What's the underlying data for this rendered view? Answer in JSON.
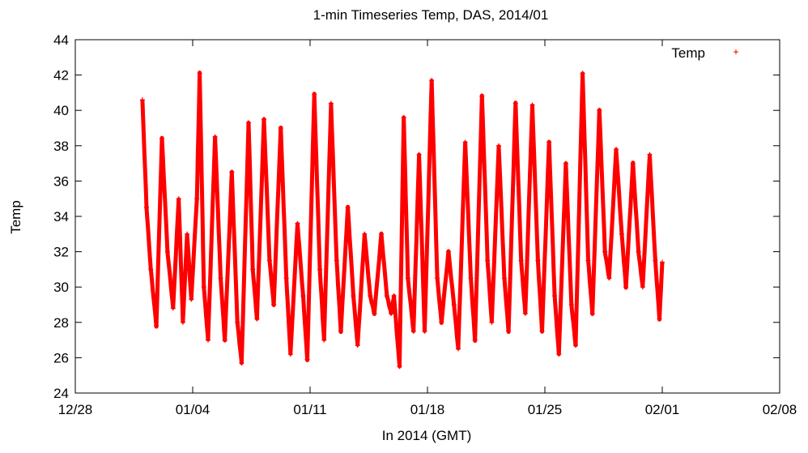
{
  "chart_data": {
    "type": "scatter",
    "title": "1-min Timeseries Temp, DAS, 2014/01",
    "xlabel": "In 2014 (GMT)",
    "ylabel": "Temp",
    "xlim": [
      "2013-12-28",
      "2014-02-08"
    ],
    "ylim": [
      24,
      44
    ],
    "x_ticks": [
      "12/28",
      "01/04",
      "01/11",
      "01/18",
      "01/25",
      "02/01",
      "02/08"
    ],
    "y_ticks": [
      24,
      26,
      28,
      30,
      32,
      34,
      36,
      38,
      40,
      42,
      44
    ],
    "grid": false,
    "legend": "top-right",
    "marker": "+",
    "series": [
      {
        "name": "Temp",
        "color": "#ff0000",
        "points": [
          [
            "2014-01-01 00:00",
            40.6
          ],
          [
            "2014-01-01 06:00",
            34.5
          ],
          [
            "2014-01-01 12:00",
            31.0
          ],
          [
            "2014-01-01 20:00",
            27.8
          ],
          [
            "2014-01-02 04:00",
            38.4
          ],
          [
            "2014-01-02 12:00",
            32.0
          ],
          [
            "2014-01-02 20:00",
            28.8
          ],
          [
            "2014-01-03 04:00",
            35.0
          ],
          [
            "2014-01-03 10:00",
            28.0
          ],
          [
            "2014-01-03 16:00",
            33.0
          ],
          [
            "2014-01-03 22:00",
            29.3
          ],
          [
            "2014-01-04 06:00",
            35.0
          ],
          [
            "2014-01-04 10:00",
            42.1
          ],
          [
            "2014-01-04 16:00",
            30.0
          ],
          [
            "2014-01-04 22:00",
            27.0
          ],
          [
            "2014-01-05 08:00",
            38.5
          ],
          [
            "2014-01-05 16:00",
            30.5
          ],
          [
            "2014-01-05 22:00",
            27.0
          ],
          [
            "2014-01-06 08:00",
            36.5
          ],
          [
            "2014-01-06 16:00",
            28.0
          ],
          [
            "2014-01-06 22:00",
            25.7
          ],
          [
            "2014-01-07 08:00",
            39.3
          ],
          [
            "2014-01-07 14:00",
            31.0
          ],
          [
            "2014-01-07 20:00",
            28.2
          ],
          [
            "2014-01-08 06:00",
            39.5
          ],
          [
            "2014-01-08 14:00",
            31.5
          ],
          [
            "2014-01-08 20:00",
            29.0
          ],
          [
            "2014-01-09 06:00",
            39.0
          ],
          [
            "2014-01-09 14:00",
            30.5
          ],
          [
            "2014-01-09 20:00",
            26.2
          ],
          [
            "2014-01-10 06:00",
            33.6
          ],
          [
            "2014-01-10 14:00",
            29.5
          ],
          [
            "2014-01-10 20:00",
            25.9
          ],
          [
            "2014-01-11 06:00",
            40.9
          ],
          [
            "2014-01-11 14:00",
            31.0
          ],
          [
            "2014-01-11 20:00",
            27.0
          ],
          [
            "2014-01-12 06:00",
            40.4
          ],
          [
            "2014-01-12 14:00",
            31.5
          ],
          [
            "2014-01-12 20:00",
            27.5
          ],
          [
            "2014-01-13 06:00",
            34.5
          ],
          [
            "2014-01-13 14:00",
            29.5
          ],
          [
            "2014-01-13 20:00",
            26.7
          ],
          [
            "2014-01-14 06:00",
            33.0
          ],
          [
            "2014-01-14 14:00",
            29.5
          ],
          [
            "2014-01-14 20:00",
            28.5
          ],
          [
            "2014-01-15 06:00",
            33.0
          ],
          [
            "2014-01-15 14:00",
            29.5
          ],
          [
            "2014-01-15 20:00",
            28.5
          ],
          [
            "2014-01-16 00:00",
            29.5
          ],
          [
            "2014-01-16 08:00",
            25.5
          ],
          [
            "2014-01-16 14:00",
            39.6
          ],
          [
            "2014-01-16 20:00",
            30.5
          ],
          [
            "2014-01-17 04:00",
            27.5
          ],
          [
            "2014-01-17 12:00",
            37.5
          ],
          [
            "2014-01-17 20:00",
            27.5
          ],
          [
            "2014-01-18 06:00",
            41.7
          ],
          [
            "2014-01-18 14:00",
            30.5
          ],
          [
            "2014-01-18 20:00",
            28.0
          ],
          [
            "2014-01-19 06:00",
            32.0
          ],
          [
            "2014-01-19 14:00",
            29.0
          ],
          [
            "2014-01-19 20:00",
            26.5
          ],
          [
            "2014-01-20 06:00",
            38.2
          ],
          [
            "2014-01-20 14:00",
            30.5
          ],
          [
            "2014-01-20 20:00",
            27.0
          ],
          [
            "2014-01-21 06:00",
            40.8
          ],
          [
            "2014-01-21 14:00",
            31.5
          ],
          [
            "2014-01-21 20:00",
            28.0
          ],
          [
            "2014-01-22 06:00",
            38.0
          ],
          [
            "2014-01-22 14:00",
            30.5
          ],
          [
            "2014-01-22 20:00",
            27.5
          ],
          [
            "2014-01-23 06:00",
            40.4
          ],
          [
            "2014-01-23 14:00",
            31.5
          ],
          [
            "2014-01-23 20:00",
            28.5
          ],
          [
            "2014-01-24 06:00",
            40.3
          ],
          [
            "2014-01-24 14:00",
            31.5
          ],
          [
            "2014-01-24 20:00",
            27.5
          ],
          [
            "2014-01-25 06:00",
            38.2
          ],
          [
            "2014-01-25 14:00",
            29.5
          ],
          [
            "2014-01-25 20:00",
            26.2
          ],
          [
            "2014-01-26 06:00",
            37.0
          ],
          [
            "2014-01-26 14:00",
            29.0
          ],
          [
            "2014-01-26 20:00",
            26.7
          ],
          [
            "2014-01-27 06:00",
            42.1
          ],
          [
            "2014-01-27 14:00",
            31.5
          ],
          [
            "2014-01-27 20:00",
            28.5
          ],
          [
            "2014-01-28 06:00",
            40.0
          ],
          [
            "2014-01-28 14:00",
            32.0
          ],
          [
            "2014-01-28 20:00",
            30.5
          ],
          [
            "2014-01-29 06:00",
            37.8
          ],
          [
            "2014-01-29 14:00",
            33.0
          ],
          [
            "2014-01-29 20:00",
            30.0
          ],
          [
            "2014-01-30 06:00",
            37.0
          ],
          [
            "2014-01-30 14:00",
            32.0
          ],
          [
            "2014-01-30 20:00",
            30.0
          ],
          [
            "2014-01-31 06:00",
            37.5
          ],
          [
            "2014-01-31 14:00",
            31.5
          ],
          [
            "2014-01-31 20:00",
            28.2
          ],
          [
            "2014-02-01 00:00",
            31.4
          ]
        ]
      }
    ]
  }
}
